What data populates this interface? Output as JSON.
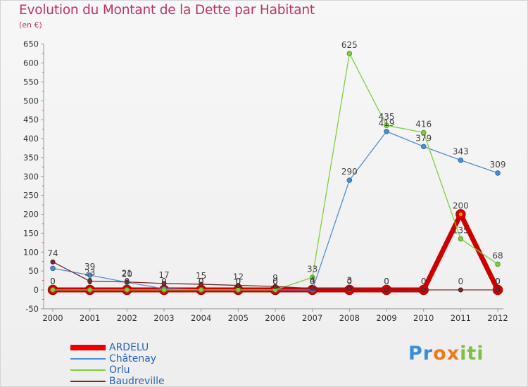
{
  "chart_data": {
    "type": "line",
    "title": "Evolution du Montant de la Dette par Habitant",
    "ylabel": "(en €)",
    "xlabel": "",
    "categories": [
      "2000",
      "2001",
      "2002",
      "2003",
      "2004",
      "2005",
      "2006",
      "2007",
      "2008",
      "2009",
      "2010",
      "2011",
      "2012"
    ],
    "ylim": [
      -50,
      650
    ],
    "yticks": [
      -50,
      0,
      50,
      100,
      150,
      200,
      250,
      300,
      350,
      400,
      450,
      500,
      550,
      600,
      650
    ],
    "series": [
      {
        "name": "ARDELU",
        "color": "#ee0000",
        "values": [
          0,
          0,
          0,
          0,
          0,
          0,
          0,
          0,
          0,
          0,
          0,
          200,
          0
        ],
        "labels": [
          "0",
          "0",
          "0",
          "0",
          "0",
          "0",
          "0",
          "0",
          "0",
          "0",
          "0",
          "200",
          "0"
        ]
      },
      {
        "name": "Châtenay",
        "color": "#4f8fcf",
        "values": [
          57,
          39,
          20,
          3,
          0,
          0,
          0,
          0,
          290,
          419,
          379,
          343,
          309
        ],
        "labels": [
          "",
          "39",
          "20",
          "",
          "0",
          "0",
          "0",
          "0",
          "290",
          "419",
          "379",
          "343",
          "309"
        ]
      },
      {
        "name": "Orlu",
        "color": "#7ecf3c",
        "values": [
          0,
          0,
          0,
          0,
          0,
          0,
          0,
          33,
          625,
          435,
          416,
          135,
          68
        ],
        "labels": [
          "0",
          "0",
          "0",
          "0",
          "0",
          "0",
          "0",
          "33",
          "625",
          "435",
          "416",
          "135",
          "68"
        ]
      },
      {
        "name": "Baudreville",
        "color": "#7a2a2a",
        "values": [
          74,
          23,
          21,
          17,
          15,
          12,
          9,
          4,
          3,
          0,
          0,
          0,
          0
        ],
        "labels": [
          "74",
          "23",
          "21",
          "17",
          "15",
          "12",
          "9",
          "4",
          "3",
          "0",
          "0",
          "0",
          "0"
        ]
      }
    ],
    "grid": false,
    "legend_position": "bottom-left"
  },
  "branding": {
    "logo_text": "Proxiti",
    "logo_letters": [
      "P",
      "r",
      "o",
      "x",
      "i",
      "t",
      "i"
    ],
    "logo_colors": [
      "#3a8ed8",
      "#3a8ed8",
      "#f07a1a",
      "#f07a1a",
      "#7cc043",
      "#7cc043",
      "#7cc043"
    ]
  }
}
